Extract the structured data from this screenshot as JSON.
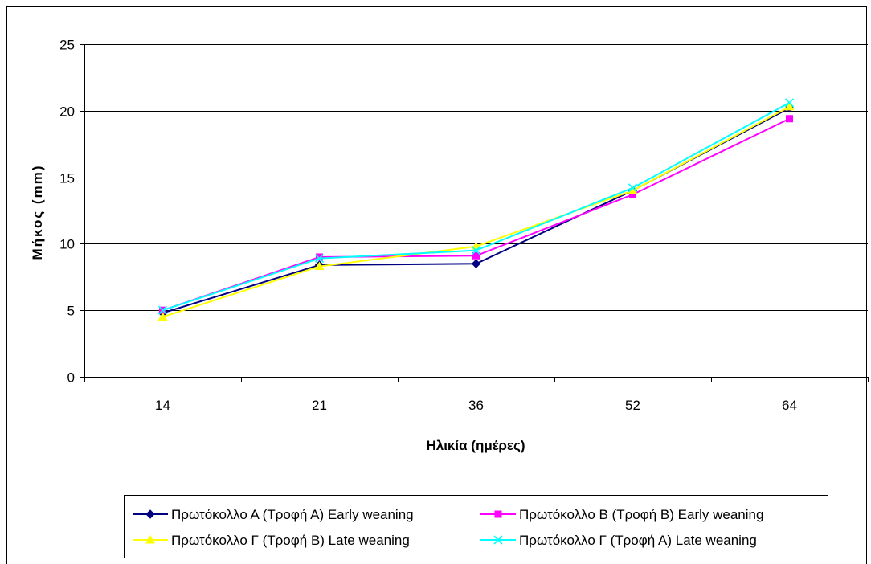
{
  "chart_data": {
    "type": "line",
    "title": "",
    "xlabel": "Ηλικία (ημέρες)",
    "ylabel": "Μήκος (mm)",
    "categories": [
      "14",
      "21",
      "36",
      "52",
      "64"
    ],
    "ylim": [
      0,
      25
    ],
    "yticks": [
      0,
      5,
      10,
      15,
      20,
      25
    ],
    "grid": "horizontal",
    "legend_position": "bottom",
    "series": [
      {
        "name": "Πρωτόκολλο Α (Τροφή Α) Early weaning",
        "color": "#000080",
        "marker": "diamond",
        "values": [
          4.8,
          8.4,
          8.5,
          14.0,
          20.2
        ]
      },
      {
        "name": "Πρωτόκολλο Β (Τροφή Β) Early weaning",
        "color": "#FF00FF",
        "marker": "square",
        "values": [
          5.0,
          9.0,
          9.1,
          13.7,
          19.4
        ]
      },
      {
        "name": "Πρωτόκολλο Γ (Τροφή Β) Late weaning",
        "color": "#FFFF00",
        "marker": "triangle",
        "values": [
          4.5,
          8.3,
          9.8,
          14.0,
          20.3
        ]
      },
      {
        "name": "Πρωτόκολλο Γ (Τροφή Α) Late weaning",
        "color": "#00FFFF",
        "marker": "x",
        "values": [
          5.0,
          8.9,
          9.5,
          14.2,
          20.6
        ]
      }
    ]
  }
}
